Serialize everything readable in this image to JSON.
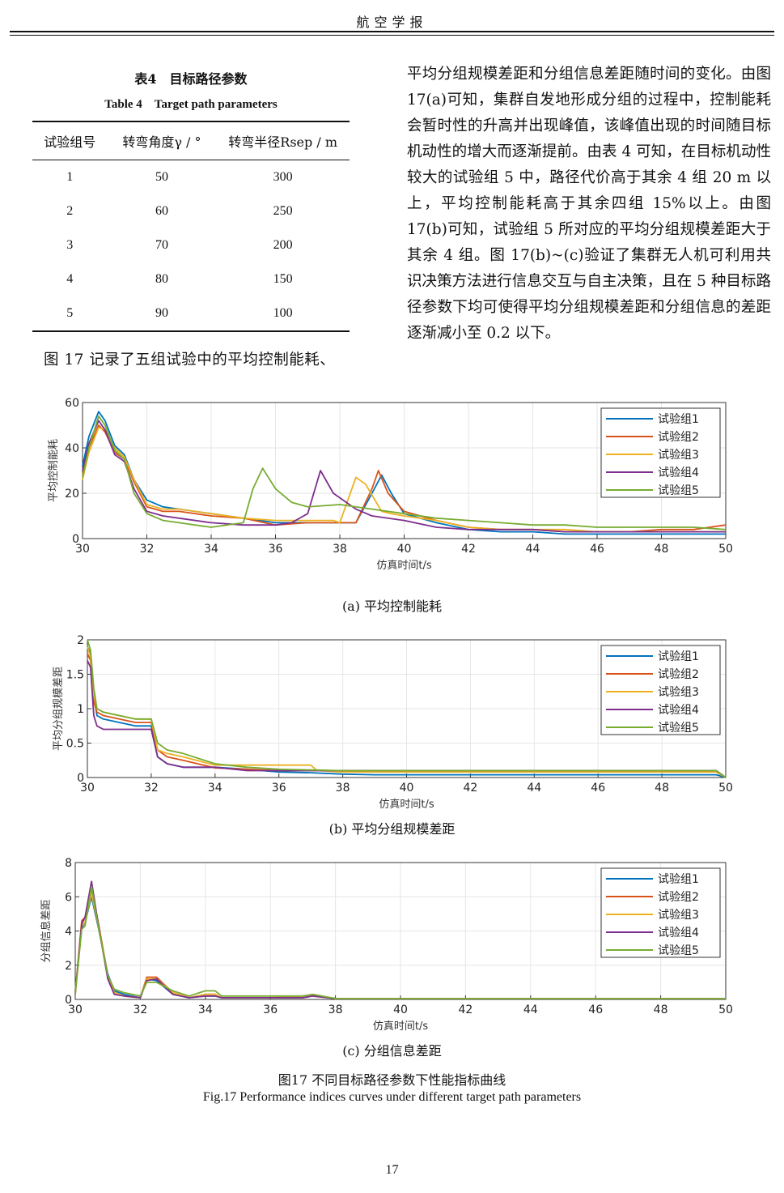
{
  "journal_header": "航空学报",
  "table": {
    "caption_cn": "表4　目标路径参数",
    "caption_en": "Table 4　Target path parameters",
    "headers": [
      "试验组号",
      "转弯角度γ / °",
      "转弯半径Rsep / m"
    ],
    "rows": [
      [
        "1",
        "50",
        "300"
      ],
      [
        "2",
        "60",
        "250"
      ],
      [
        "3",
        "70",
        "200"
      ],
      [
        "4",
        "80",
        "150"
      ],
      [
        "5",
        "90",
        "100"
      ]
    ]
  },
  "left_text": "图 17 记录了五组试验中的平均控制能耗、",
  "right_text": "平均分组规模差距和分组信息差距随时间的变化。由图 17(a)可知，集群自发地形成分组的过程中，控制能耗会暂时性的升高并出现峰值，该峰值出现的时间随目标机动性的增大而逐渐提前。由表 4 可知，在目标机动性较大的试验组 5 中，路径代价高于其余 4 组 20 m 以上，平均控制能耗高于其余四组 15%以上。由图 17(b)可知，试验组 5 所对应的平均分组规模差距大于其余 4 组。图 17(b)~(c)验证了集群无人机可利用共识决策方法进行信息交互与自主决策，且在 5 种目标路径参数下均可使得平均分组规模差距和分组信息的差距逐渐减小至 0.2 以下。",
  "subcaptions": [
    "(a)  平均控制能耗",
    "(b)  平均分组规模差距",
    "(c)  分组信息差距"
  ],
  "figure_caption_cn": "图17  不同目标路径参数下性能指标曲线",
  "figure_caption_en": "Fig.17    Performance indices curves under different target path parameters",
  "page_number": "17",
  "series_colors": [
    "#0072BD",
    "#D95319",
    "#EDB120",
    "#7E2F8E",
    "#77AC30"
  ],
  "chart_data": [
    {
      "type": "line",
      "xlabel": "仿真时间t/s",
      "ylabel": "平均控制能耗",
      "xlim": [
        30,
        50
      ],
      "ylim": [
        0,
        60
      ],
      "xticks": [
        30,
        32,
        34,
        36,
        38,
        40,
        42,
        44,
        46,
        48,
        50
      ],
      "yticks": [
        0,
        20,
        40,
        60
      ],
      "grid": true,
      "legend": "top-right",
      "series": [
        {
          "name": "试验组1",
          "x": [
            30,
            30.2,
            30.5,
            30.7,
            31,
            31.3,
            31.6,
            32,
            32.5,
            33,
            34,
            35,
            36,
            37,
            38,
            38.5,
            39,
            39.3,
            39.6,
            40,
            41,
            42,
            43,
            44,
            45,
            46,
            47,
            48,
            49,
            50
          ],
          "y": [
            32,
            45,
            56,
            52,
            41,
            37,
            26,
            17,
            14,
            13,
            11,
            9,
            7,
            7,
            7,
            7,
            20,
            28,
            20,
            11,
            7,
            4,
            3,
            3,
            2,
            2,
            2,
            2,
            2,
            2
          ]
        },
        {
          "name": "试验组2",
          "x": [
            30,
            30.2,
            30.5,
            30.7,
            31,
            31.3,
            31.6,
            32,
            32.5,
            33,
            34,
            35,
            36,
            37,
            38,
            38.5,
            39,
            39.2,
            39.5,
            40,
            41,
            42,
            43,
            44,
            45,
            46,
            47,
            48,
            49,
            50
          ],
          "y": [
            28,
            40,
            50,
            47,
            38,
            35,
            25,
            14,
            12,
            12,
            10,
            9,
            6,
            7,
            7,
            7,
            22,
            30,
            20,
            12,
            8,
            5,
            4,
            4,
            3,
            3,
            3,
            4,
            4,
            6
          ]
        },
        {
          "name": "试验组3",
          "x": [
            30,
            30.2,
            30.5,
            30.7,
            31,
            31.3,
            31.6,
            32,
            32.5,
            33,
            34,
            35,
            36,
            37,
            37.8,
            38,
            38.5,
            38.8,
            39.3,
            39.6,
            40,
            41,
            42,
            43,
            44,
            45,
            46,
            47,
            48,
            49,
            50
          ],
          "y": [
            26,
            38,
            49,
            48,
            40,
            36,
            26,
            15,
            13,
            13,
            11,
            9,
            8,
            8,
            8,
            7,
            27,
            24,
            12,
            11,
            10,
            8,
            5,
            4,
            4,
            4,
            3,
            3,
            3,
            3,
            3
          ]
        },
        {
          "name": "试验组4",
          "x": [
            30,
            30.2,
            30.5,
            30.7,
            31,
            31.3,
            31.6,
            32,
            32.5,
            33,
            34,
            35,
            36,
            36.5,
            37,
            37.4,
            37.8,
            38.5,
            39,
            40,
            41,
            42,
            43,
            44,
            45,
            46,
            47,
            48,
            49,
            50
          ],
          "y": [
            30,
            42,
            52,
            48,
            37,
            34,
            22,
            12,
            10,
            9,
            7,
            6,
            6,
            7,
            11,
            30,
            20,
            13,
            10,
            8,
            5,
            4,
            4,
            4,
            3,
            3,
            3,
            3,
            3,
            3
          ]
        },
        {
          "name": "试验组5",
          "x": [
            30,
            30.2,
            30.5,
            30.7,
            31,
            31.3,
            31.6,
            32,
            32.5,
            33,
            34,
            35,
            35.3,
            35.6,
            36,
            36.5,
            37,
            38,
            39,
            40,
            41,
            42,
            43,
            44,
            45,
            46,
            47,
            48,
            49,
            50
          ],
          "y": [
            27,
            40,
            54,
            50,
            39,
            35,
            20,
            11,
            8,
            7,
            5,
            7,
            22,
            31,
            22,
            16,
            14,
            15,
            13,
            11,
            9,
            8,
            7,
            6,
            6,
            5,
            5,
            5,
            5,
            4
          ]
        }
      ]
    },
    {
      "type": "line",
      "xlabel": "仿真时间t/s",
      "ylabel": "平均分组规模差距",
      "xlim": [
        30,
        50
      ],
      "ylim": [
        0,
        2
      ],
      "xticks": [
        30,
        32,
        34,
        36,
        38,
        40,
        42,
        44,
        46,
        48,
        50
      ],
      "yticks": [
        0,
        0.5,
        1,
        1.5,
        2
      ],
      "ytick_labels": [
        "0",
        "0.5",
        "1",
        "1.5",
        "2"
      ],
      "grid": true,
      "legend": "top-right",
      "series": [
        {
          "name": "试验组1",
          "x": [
            30,
            30.1,
            30.2,
            30.3,
            30.5,
            31,
            31.5,
            32,
            32.2,
            32.5,
            33,
            34,
            35,
            36,
            37,
            38,
            39,
            40,
            42,
            44,
            46,
            48,
            49.7,
            50
          ],
          "y": [
            1.9,
            1.8,
            1.2,
            0.9,
            0.85,
            0.8,
            0.75,
            0.75,
            0.3,
            0.2,
            0.15,
            0.15,
            0.12,
            0.08,
            0.07,
            0.05,
            0.04,
            0.04,
            0.04,
            0.04,
            0.04,
            0.04,
            0.04,
            0
          ]
        },
        {
          "name": "试验组2",
          "x": [
            30,
            30.1,
            30.2,
            30.3,
            30.5,
            31,
            31.5,
            32,
            32.2,
            32.5,
            33,
            34,
            35,
            36,
            37,
            38,
            40,
            42,
            44,
            46,
            48,
            49.7,
            50
          ],
          "y": [
            1.8,
            1.7,
            1.1,
            0.95,
            0.9,
            0.85,
            0.8,
            0.8,
            0.4,
            0.3,
            0.25,
            0.14,
            0.12,
            0.1,
            0.1,
            0.1,
            0.1,
            0.1,
            0.1,
            0.1,
            0.1,
            0.1,
            0
          ]
        },
        {
          "name": "试验组3",
          "x": [
            30,
            30.1,
            30.2,
            30.3,
            30.5,
            31,
            31.5,
            32,
            32.2,
            32.5,
            33,
            34,
            35,
            36,
            37,
            37.2,
            38,
            40,
            42,
            44,
            46,
            48,
            49.7,
            50
          ],
          "y": [
            1.9,
            1.75,
            1.2,
            1.0,
            0.95,
            0.9,
            0.85,
            0.85,
            0.4,
            0.35,
            0.3,
            0.18,
            0.18,
            0.18,
            0.18,
            0.1,
            0.08,
            0.08,
            0.08,
            0.08,
            0.08,
            0.08,
            0.08,
            0
          ]
        },
        {
          "name": "试验组4",
          "x": [
            30,
            30.1,
            30.2,
            30.3,
            30.5,
            31,
            31.5,
            32,
            32.2,
            32.5,
            33,
            34,
            35,
            36,
            38,
            40,
            42,
            44,
            46,
            48,
            49.7,
            50
          ],
          "y": [
            1.7,
            1.6,
            0.9,
            0.75,
            0.7,
            0.7,
            0.7,
            0.7,
            0.3,
            0.2,
            0.15,
            0.15,
            0.1,
            0.1,
            0.1,
            0.1,
            0.1,
            0.1,
            0.1,
            0.1,
            0.1,
            0
          ]
        },
        {
          "name": "试验组5",
          "x": [
            30,
            30.1,
            30.2,
            30.3,
            30.5,
            31,
            31.5,
            32,
            32.2,
            32.5,
            33,
            34,
            35,
            36,
            38,
            40,
            42,
            44,
            46,
            48,
            49.7,
            50
          ],
          "y": [
            2.0,
            1.85,
            1.3,
            1.0,
            0.95,
            0.9,
            0.85,
            0.85,
            0.5,
            0.4,
            0.35,
            0.2,
            0.15,
            0.12,
            0.1,
            0.1,
            0.1,
            0.1,
            0.1,
            0.1,
            0.1,
            0
          ]
        }
      ]
    },
    {
      "type": "line",
      "xlabel": "仿真时间t/s",
      "ylabel": "分组信息差距",
      "xlim": [
        30,
        50
      ],
      "ylim": [
        0,
        8
      ],
      "xticks": [
        30,
        32,
        34,
        36,
        38,
        40,
        42,
        44,
        46,
        48,
        50
      ],
      "yticks": [
        0,
        2,
        4,
        6,
        8
      ],
      "grid": true,
      "legend": "top-right",
      "series": [
        {
          "name": "试验组1",
          "x": [
            30,
            30.2,
            30.3,
            30.5,
            30.7,
            31,
            31.2,
            31.5,
            32,
            32.2,
            32.5,
            33,
            33.5,
            34,
            34.3,
            34.5,
            35,
            36,
            37,
            37.3,
            38,
            40,
            42,
            44,
            46,
            48,
            50
          ],
          "y": [
            0.5,
            4.2,
            4.5,
            6.0,
            4.3,
            1.5,
            0.5,
            0.3,
            0.1,
            1.2,
            1.1,
            0.3,
            0.1,
            0.2,
            0.2,
            0.1,
            0.1,
            0.1,
            0.1,
            0.2,
            0.05,
            0.05,
            0.05,
            0.05,
            0.05,
            0.05,
            0.05
          ]
        },
        {
          "name": "试验组2",
          "x": [
            30,
            30.2,
            30.3,
            30.5,
            30.7,
            31,
            31.2,
            31.5,
            32,
            32.2,
            32.5,
            33,
            33.5,
            34,
            34.3,
            34.5,
            35,
            36,
            37,
            37.3,
            38,
            40,
            42,
            44,
            46,
            48,
            50
          ],
          "y": [
            0.4,
            4.6,
            4.8,
            6.4,
            4.6,
            1.4,
            0.4,
            0.2,
            0.1,
            1.3,
            1.3,
            0.4,
            0.1,
            0.3,
            0.3,
            0.1,
            0.1,
            0.1,
            0.1,
            0.2,
            0.05,
            0.05,
            0.05,
            0.05,
            0.05,
            0.05,
            0.05
          ]
        },
        {
          "name": "试验组3",
          "x": [
            30,
            30.2,
            30.3,
            30.5,
            30.7,
            31,
            31.2,
            31.5,
            32,
            32.2,
            32.5,
            33,
            33.5,
            34,
            34.3,
            34.5,
            35,
            36,
            37,
            37.3,
            38,
            40,
            42,
            44,
            46,
            48,
            50
          ],
          "y": [
            0.4,
            4.3,
            4.5,
            6.2,
            4.4,
            1.3,
            0.4,
            0.2,
            0.1,
            1.2,
            1.2,
            0.4,
            0.1,
            0.3,
            0.3,
            0.1,
            0.1,
            0.1,
            0.2,
            0.3,
            0.05,
            0.05,
            0.05,
            0.05,
            0.05,
            0.05,
            0.05
          ]
        },
        {
          "name": "试验组4",
          "x": [
            30,
            30.2,
            30.3,
            30.5,
            30.7,
            31,
            31.2,
            31.5,
            32,
            32.2,
            32.5,
            33,
            33.5,
            34,
            34.3,
            34.5,
            35,
            36,
            37,
            37.3,
            38,
            40,
            42,
            44,
            46,
            48,
            50
          ],
          "y": [
            0.3,
            4.4,
            4.8,
            6.9,
            4.5,
            1.2,
            0.3,
            0.2,
            0.1,
            1.1,
            1.2,
            0.3,
            0.1,
            0.2,
            0.2,
            0.1,
            0.1,
            0.1,
            0.1,
            0.2,
            0.05,
            0.05,
            0.05,
            0.05,
            0.05,
            0.05,
            0.05
          ]
        },
        {
          "name": "试验组5",
          "x": [
            30,
            30.2,
            30.3,
            30.5,
            30.7,
            31,
            31.2,
            31.5,
            32,
            32.2,
            32.5,
            33,
            33.5,
            34,
            34.3,
            34.5,
            35,
            36,
            37,
            37.3,
            38,
            40,
            42,
            44,
            46,
            48,
            50
          ],
          "y": [
            0.3,
            4.1,
            4.3,
            6.6,
            4.4,
            1.4,
            0.6,
            0.4,
            0.2,
            1.0,
            1.0,
            0.5,
            0.2,
            0.5,
            0.5,
            0.2,
            0.2,
            0.2,
            0.2,
            0.3,
            0.05,
            0.05,
            0.05,
            0.05,
            0.05,
            0.05,
            0.05
          ]
        }
      ]
    }
  ]
}
